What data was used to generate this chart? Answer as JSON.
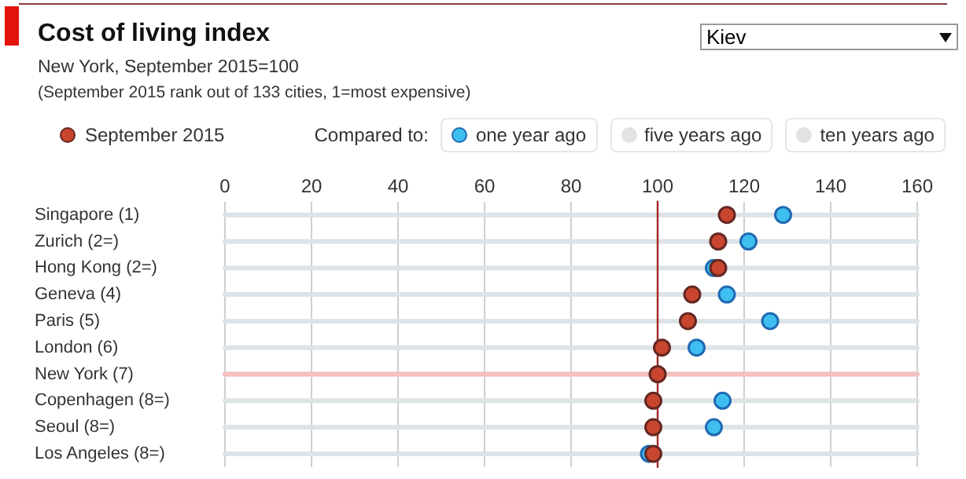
{
  "chart_data": {
    "type": "scatter",
    "title": "Cost of living index",
    "subtitle": "New York, September 2015=100\n(September 2015 rank out of 133 cities, 1=most expensive)",
    "categories": [
      "Singapore (1)",
      "Zurich (2=)",
      "Hong Kong (2=)",
      "Geneva (4)",
      "Paris (5)",
      "London (6)",
      "New York (7)",
      "Copenhagen (8=)",
      "Seoul (8=)",
      "Los Angeles (8=)"
    ],
    "series": [
      {
        "name": "one year ago",
        "color": "#3fbfef",
        "values": [
          129,
          121,
          113,
          116,
          126,
          109,
          null,
          115,
          113,
          98
        ]
      },
      {
        "name": "September 2015",
        "color": "#c8462e",
        "values": [
          116,
          114,
          114,
          108,
          107,
          101,
          100,
          99,
          99,
          99
        ]
      }
    ],
    "orientation": "horizontal",
    "xlim": [
      0,
      160
    ],
    "xticks": [
      0,
      20,
      40,
      60,
      80,
      100,
      120,
      140,
      160
    ],
    "grid": "x",
    "marker": "circle",
    "legend": "top left",
    "ref_lines": [
      {
        "axis": "x",
        "value": 100,
        "color": "#a02a22"
      },
      {
        "axis": "y",
        "value": "New York (7)",
        "color": "#f4c0c0"
      }
    ],
    "annotations": [
      "Kiev",
      "Compared to:",
      "five years ago",
      "ten years ago"
    ]
  }
}
